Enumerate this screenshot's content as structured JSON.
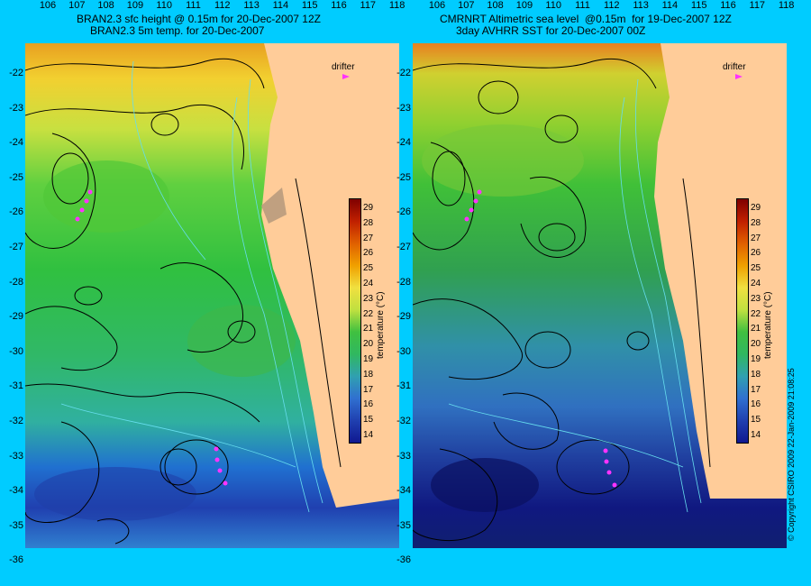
{
  "left_panel": {
    "title_line1": "BRAN2.3 sfc height @ 0.15m for 20-Dec-2007 12Z",
    "title_line2": "BRAN2.3 5m temp. for 20-Dec-2007",
    "drifter_label": "drifter"
  },
  "right_panel": {
    "title_line1": "CMRNRT Altimetric sea level  @0.15m  for 19-Dec-2007 12Z",
    "title_line2": "3day AVHRR SST for 20-Dec-2007 00Z",
    "drifter_label": "drifter"
  },
  "lat_labels": [
    "-22",
    "-23",
    "-24",
    "-25",
    "-26",
    "-27",
    "-28",
    "-29",
    "-30",
    "-31",
    "-32",
    "-33",
    "-34",
    "-35",
    "-36"
  ],
  "lon_labels": [
    "106",
    "107",
    "108",
    "109",
    "110",
    "111",
    "112",
    "113",
    "114",
    "115",
    "116",
    "117",
    "118"
  ],
  "colorbar": {
    "ticks": [
      "29",
      "28",
      "27",
      "26",
      "25",
      "24",
      "23",
      "22",
      "21",
      "20",
      "19",
      "18",
      "17",
      "16",
      "15",
      "14"
    ],
    "title": "temperature (°C)"
  },
  "copyright": "© Copyright CSIRO 2009   22-Jan-2009 21:08:25",
  "colors": {
    "background": "#00ccff",
    "land": "#ffcc99",
    "drifter": "#ff33ff",
    "contour": "#000000",
    "bathymetry": "#66ddee"
  }
}
